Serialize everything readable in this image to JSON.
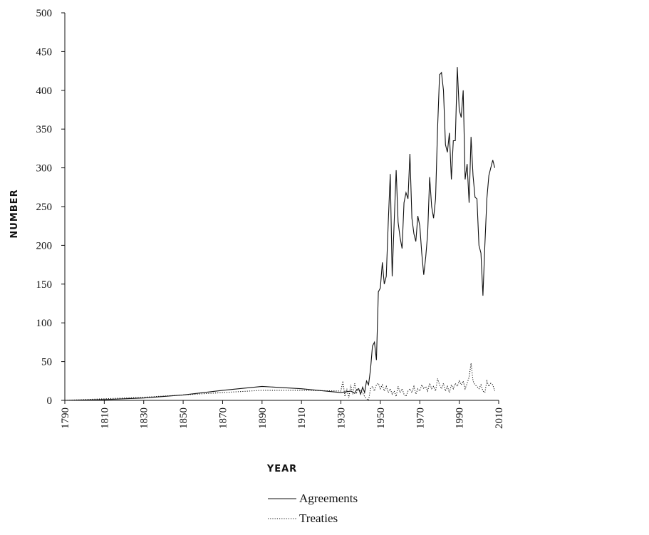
{
  "chart_data": {
    "type": "line",
    "xlabel": "YEAR",
    "ylabel": "NUMBER",
    "xlim": [
      1790,
      2010
    ],
    "xticks": [
      1790,
      1810,
      1830,
      1850,
      1870,
      1890,
      1910,
      1930,
      1950,
      1970,
      1990,
      2010
    ],
    "ylim": [
      0,
      500
    ],
    "yticks": [
      0,
      50,
      100,
      150,
      200,
      250,
      300,
      350,
      400,
      450,
      500
    ],
    "grid": false,
    "legend": "bottom",
    "series": [
      {
        "name": "Agreements",
        "color": "#111111",
        "style": "solid",
        "x": [
          1790,
          1810,
          1830,
          1850,
          1870,
          1890,
          1910,
          1930,
          1935,
          1937,
          1938,
          1939,
          1940,
          1941,
          1942,
          1943,
          1944,
          1945,
          1946,
          1947,
          1948,
          1949,
          1950,
          1951,
          1952,
          1953,
          1954,
          1955,
          1956,
          1957,
          1958,
          1959,
          1960,
          1961,
          1962,
          1963,
          1964,
          1965,
          1966,
          1967,
          1968,
          1969,
          1970,
          1971,
          1972,
          1973,
          1974,
          1975,
          1976,
          1977,
          1978,
          1979,
          1980,
          1981,
          1982,
          1983,
          1984,
          1985,
          1986,
          1987,
          1988,
          1989,
          1990,
          1991,
          1992,
          1993,
          1994,
          1995,
          1996,
          1997,
          1998,
          1999,
          2000,
          2001,
          2002,
          2003,
          2004,
          2005,
          2006,
          2007,
          2008
        ],
        "values": [
          0,
          1,
          3,
          7,
          13,
          18,
          15,
          10,
          12,
          9,
          14,
          15,
          8,
          17,
          10,
          25,
          20,
          40,
          70,
          75,
          52,
          140,
          145,
          178,
          150,
          160,
          230,
          292,
          160,
          230,
          297,
          230,
          210,
          196,
          255,
          268,
          260,
          318,
          235,
          215,
          205,
          238,
          225,
          190,
          162,
          185,
          215,
          288,
          250,
          235,
          260,
          350,
          420,
          423,
          400,
          330,
          320,
          345,
          285,
          335,
          335,
          430,
          375,
          365,
          400,
          285,
          305,
          255,
          340,
          290,
          262,
          260,
          200,
          190,
          135,
          200,
          260,
          290,
          300,
          310,
          300
        ]
      },
      {
        "name": "Treaties",
        "color": "#111111",
        "style": "dotted",
        "x": [
          1790,
          1830,
          1850,
          1870,
          1890,
          1910,
          1930,
          1931,
          1932,
          1933,
          1934,
          1935,
          1936,
          1937,
          1938,
          1939,
          1940,
          1941,
          1942,
          1943,
          1944,
          1945,
          1946,
          1947,
          1948,
          1949,
          1950,
          1951,
          1952,
          1953,
          1954,
          1955,
          1956,
          1957,
          1958,
          1959,
          1960,
          1961,
          1962,
          1963,
          1964,
          1965,
          1966,
          1967,
          1968,
          1969,
          1970,
          1971,
          1972,
          1973,
          1974,
          1975,
          1976,
          1977,
          1978,
          1979,
          1980,
          1981,
          1982,
          1983,
          1984,
          1985,
          1986,
          1987,
          1988,
          1989,
          1990,
          1991,
          1992,
          1993,
          1994,
          1995,
          1996,
          1997,
          1998,
          1999,
          2000,
          2001,
          2002,
          2003,
          2004,
          2005,
          2006,
          2007,
          2008
        ],
        "values": [
          0,
          4,
          7,
          10,
          13,
          13,
          12,
          25,
          5,
          15,
          3,
          20,
          8,
          22,
          10,
          15,
          12,
          10,
          5,
          2,
          0,
          15,
          18,
          12,
          20,
          22,
          15,
          20,
          12,
          18,
          10,
          15,
          8,
          12,
          5,
          18,
          10,
          15,
          8,
          5,
          12,
          15,
          10,
          18,
          8,
          15,
          12,
          20,
          15,
          18,
          12,
          22,
          15,
          18,
          12,
          28,
          20,
          15,
          22,
          12,
          18,
          10,
          20,
          15,
          22,
          18,
          25,
          20,
          25,
          15,
          22,
          30,
          48,
          25,
          20,
          18,
          15,
          20,
          12,
          10,
          25,
          18,
          22,
          20,
          12
        ]
      }
    ]
  }
}
